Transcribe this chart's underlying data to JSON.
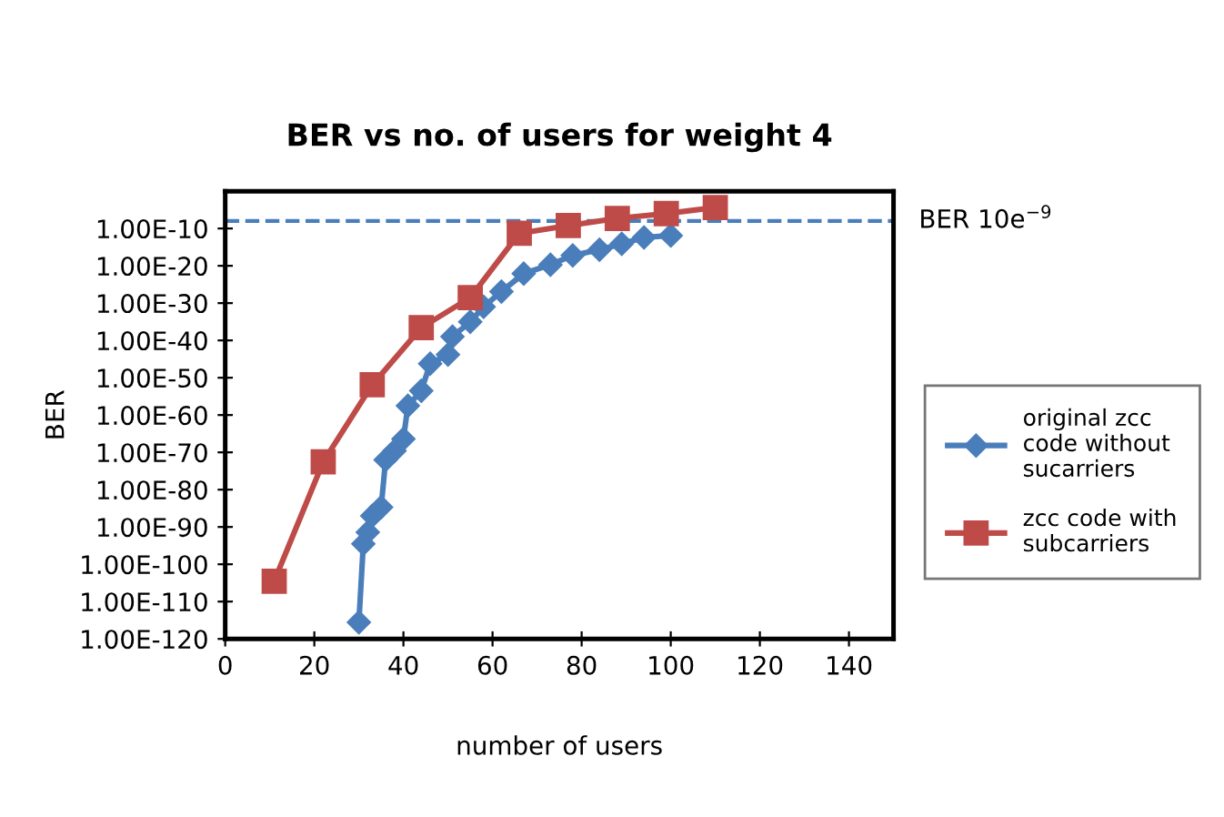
{
  "chart_data": {
    "type": "line",
    "title": "BER vs no. of users for weight 4",
    "xlabel": "number of users",
    "ylabel": "BER",
    "log": "y",
    "grid": false,
    "legend": "right",
    "xlim": [
      0,
      150
    ],
    "xticks": [
      0,
      20,
      40,
      60,
      80,
      100,
      120,
      140
    ],
    "ylim": [
      1e-120,
      1.0
    ],
    "yticks": [
      {
        "value": 1e-10,
        "label": "1.00E-10"
      },
      {
        "value": 1e-20,
        "label": "1.00E-20"
      },
      {
        "value": 1e-30,
        "label": "1.00E-30"
      },
      {
        "value": 1e-40,
        "label": "1.00E-40"
      },
      {
        "value": 1e-50,
        "label": "1.00E-50"
      },
      {
        "value": 1e-60,
        "label": "1.00E-60"
      },
      {
        "value": 1e-70,
        "label": "1.00E-70"
      },
      {
        "value": 1e-80,
        "label": "1.00E-80"
      },
      {
        "value": 1e-90,
        "label": "1.00E-90"
      },
      {
        "value": 1e-100,
        "label": "1.00E-100"
      },
      {
        "value": 1e-110,
        "label": "1.00E-110"
      },
      {
        "value": 1e-120,
        "label": "1.00E-120"
      }
    ],
    "series": [
      {
        "name": "original zcc code without sucarriers",
        "color": "#4a7ebb",
        "marker": "diamond",
        "x": [
          30,
          31,
          32,
          33,
          35,
          36,
          38,
          40,
          41,
          44,
          46,
          50,
          51,
          55,
          58,
          62,
          67,
          73,
          78,
          84,
          89,
          94,
          100
        ],
        "values": [
          3e-116,
          3e-95,
          4e-92,
          1e-87,
          2e-85,
          1e-72,
          2.5e-70,
          4e-67,
          3e-58,
          3e-54,
          6e-47,
          1.6e-44,
          1e-39,
          1e-35,
          1e-31,
          1.3e-27,
          8e-23,
          2e-20,
          6e-18,
          2e-16,
          8e-15,
          4e-13,
          1.3e-12
        ]
      },
      {
        "name": "zcc code with subcarriers",
        "color": "#be4b48",
        "marker": "square",
        "x": [
          11,
          22,
          33,
          44,
          55,
          66,
          77,
          88,
          99,
          110
        ],
        "values": [
          3e-105,
          3e-73,
          1.3e-52,
          2.5e-37,
          3e-29,
          5e-12,
          6e-10,
          5e-08,
          1e-06,
          4e-05
        ]
      }
    ],
    "ref_lines": [
      {
        "axis": "y",
        "value": 1e-08,
        "label": "BER 10e$^{−9}$",
        "color": "#4a7ebb",
        "line_style": "dashed"
      }
    ]
  }
}
